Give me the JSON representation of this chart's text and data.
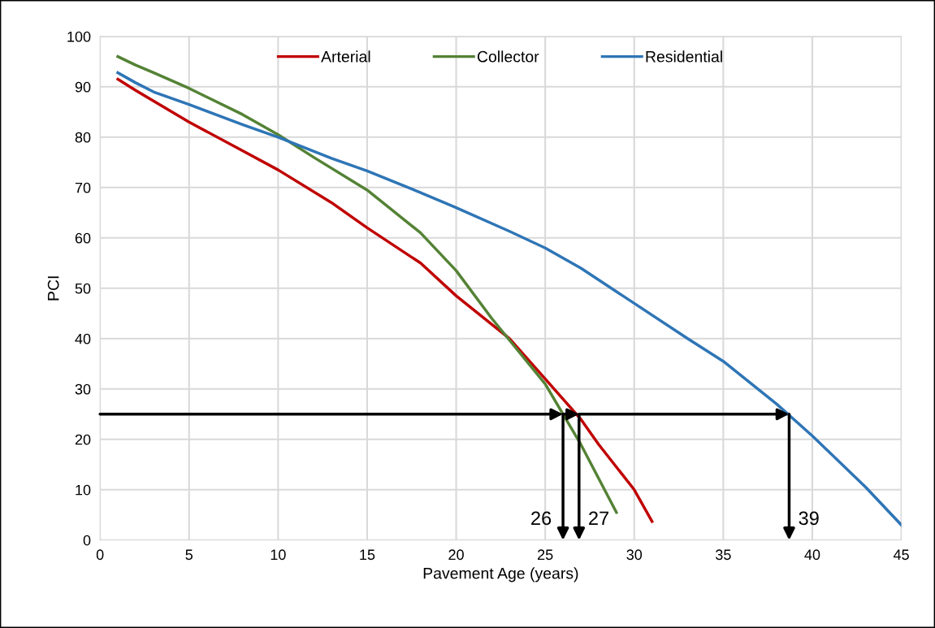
{
  "chart_data": {
    "type": "line",
    "xlabel": "Pavement Age (years)",
    "ylabel": "PCI",
    "x": [
      1,
      2,
      3,
      5,
      8,
      10,
      13,
      15,
      18,
      20,
      23,
      25,
      27,
      28,
      30,
      31
    ],
    "series": [
      {
        "name": "Arterial",
        "color": "#c00000",
        "values": [
          91.5,
          89.3,
          87.2,
          83,
          77.3,
          73.5,
          67,
          62,
          55,
          48.5,
          40,
          32,
          24,
          19,
          10,
          3.7
        ]
      },
      {
        "name": "Collector",
        "color": "#548235",
        "x": [
          1,
          2,
          3,
          5,
          8,
          10,
          12,
          15,
          18,
          20,
          22,
          25,
          27,
          29
        ],
        "values": [
          96,
          94.3,
          92.8,
          89.7,
          84.5,
          80.5,
          76,
          69.5,
          61,
          53.5,
          44,
          31,
          19,
          5.5
        ]
      },
      {
        "name": "Residential",
        "color": "#2e75b6",
        "x": [
          1,
          2,
          3,
          5,
          8,
          10,
          13,
          15,
          18,
          20,
          23,
          25,
          27,
          30,
          33,
          35,
          38,
          40,
          43,
          45
        ],
        "values": [
          92.8,
          90.8,
          89,
          86.5,
          82.5,
          80,
          75.8,
          73.3,
          69,
          66,
          61.3,
          58,
          54,
          47,
          40,
          35.5,
          27,
          20.7,
          10.5,
          3
        ]
      }
    ],
    "annotations": [
      {
        "text": "26",
        "x": 26,
        "y": 25
      },
      {
        "text": "27",
        "x": 26.9,
        "y": 25
      },
      {
        "text": "39",
        "x": 38.7,
        "y": 25
      }
    ],
    "xlim": [
      0,
      45
    ],
    "xticks": [
      0,
      5,
      10,
      15,
      20,
      25,
      30,
      35,
      40,
      45
    ],
    "ylim": [
      0,
      100
    ],
    "yticks": [
      0,
      10,
      20,
      30,
      40,
      50,
      60,
      70,
      80,
      90,
      100
    ],
    "grid": true,
    "legend": "top",
    "marker": "none",
    "line_style": "solid"
  }
}
